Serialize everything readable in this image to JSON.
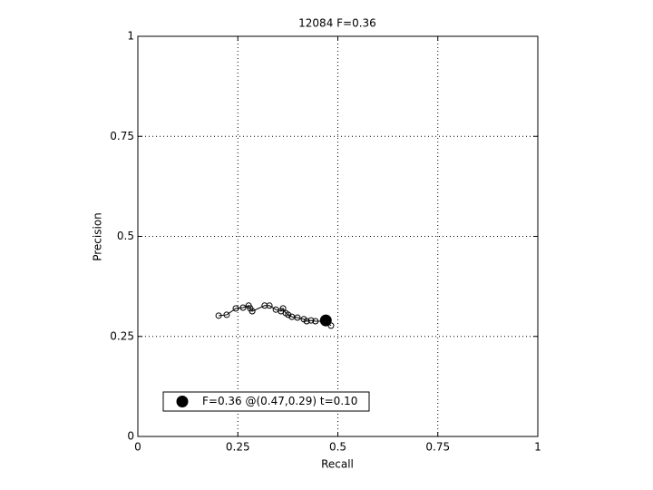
{
  "chart_data": {
    "type": "line",
    "title": "12084 F=0.36",
    "x_label": "Recall",
    "y_label": "Precision",
    "series": [
      {
        "color": "#000000",
        "marker": "open-circle",
        "x": [
          0.202,
          0.222,
          0.245,
          0.263,
          0.277,
          0.281,
          0.286,
          0.317,
          0.329,
          0.345,
          0.358,
          0.363,
          0.37,
          0.376,
          0.385,
          0.399,
          0.415,
          0.422,
          0.433,
          0.444,
          0.469,
          0.483
        ],
        "values": [
          0.302,
          0.304,
          0.32,
          0.322,
          0.327,
          0.32,
          0.313,
          0.327,
          0.327,
          0.317,
          0.313,
          0.32,
          0.308,
          0.304,
          0.299,
          0.297,
          0.293,
          0.288,
          0.29,
          0.288,
          0.288,
          0.277
        ]
      },
      {
        "name": "F=0.36 @(0.47,0.29) t=0.10",
        "color": "#000000",
        "marker": "filled-circle",
        "x": [
          0.47
        ],
        "values": [
          0.29
        ]
      }
    ],
    "xlim": [
      0,
      1
    ],
    "ylim": [
      0,
      1
    ],
    "xticks": [
      0,
      0.25,
      0.5,
      0.75,
      1
    ],
    "yticks": [
      0,
      0.25,
      0.5,
      0.75,
      1
    ],
    "grid": true,
    "legend_position": "lower left"
  }
}
